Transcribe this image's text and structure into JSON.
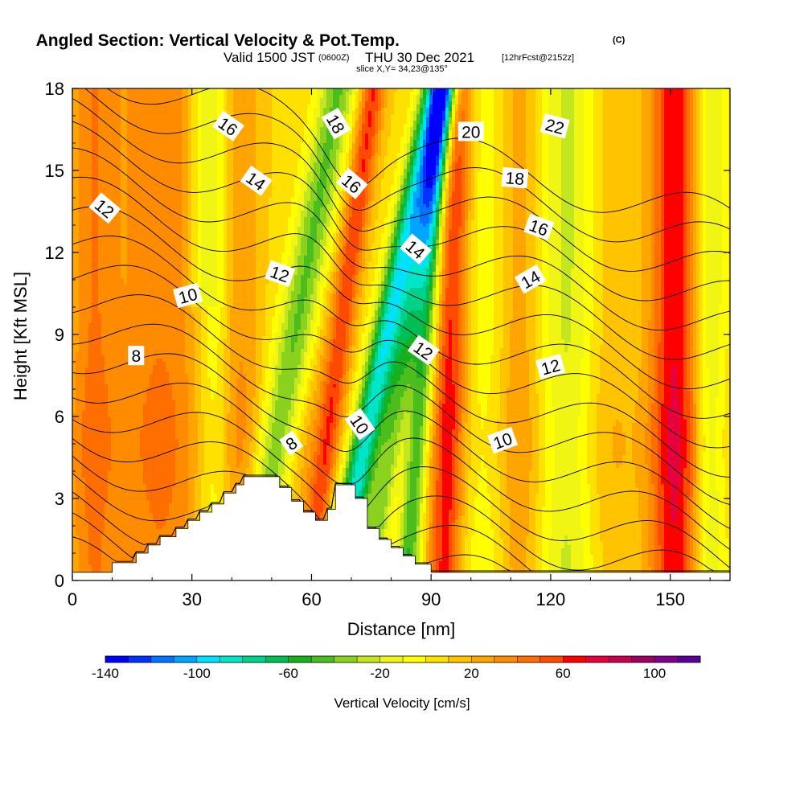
{
  "titles": {
    "main": "Angled Section: Vertical Velocity & Pot.Temp.",
    "main_suffix": "(C)",
    "valid_a": "Valid 1500 JST",
    "valid_b": "(0600Z)",
    "valid_c": "THU 30 Dec 2021",
    "valid_d": "[12hrFcst@2152z]",
    "slice": "slice X,Y= 34,23@135°"
  },
  "colors": {
    "background": "#ffffff",
    "terrain": "#ffffff",
    "contour": "#000000",
    "colorbar": [
      "#0000ff",
      "#0033ff",
      "#0073ff",
      "#00a5ff",
      "#00e0ff",
      "#00e5c8",
      "#00d28c",
      "#00be55",
      "#16b21e",
      "#4bbe1e",
      "#8ad21e",
      "#c3e61e",
      "#f0f514",
      "#ffff00",
      "#ffe100",
      "#ffc300",
      "#ffa500",
      "#ff8c00",
      "#ff6e00",
      "#ff4b00",
      "#ff0000",
      "#e6003c",
      "#c80050",
      "#a00064",
      "#80008c",
      "#5a0096"
    ]
  },
  "chart_data": {
    "type": "heatmap",
    "title": "Angled Section: Vertical Velocity & Pot.Temp.",
    "xlabel": "Distance [nm]",
    "ylabel": "Height [Kft MSL]",
    "xlim": [
      0,
      165
    ],
    "ylim": [
      0,
      18
    ],
    "xticks": [
      0,
      30,
      60,
      90,
      120,
      150
    ],
    "yticks": [
      0,
      3,
      6,
      9,
      12,
      15,
      18
    ],
    "colorbar": {
      "title": "Vertical Velocity [cm/s]",
      "min": -140,
      "max": 120,
      "step": 10,
      "ticks": [
        -140,
        -100,
        -60,
        -20,
        20,
        60,
        100
      ]
    },
    "vertical_velocity_features": [
      {
        "x": 5,
        "w": 6,
        "val": 28
      },
      {
        "x": 22,
        "w": 12,
        "val": 30
      },
      {
        "x": 36,
        "w": 4,
        "val": -20
      },
      {
        "x": 33,
        "w": 4,
        "val": -25,
        "top": 18,
        "bottom": 10
      },
      {
        "x": 42,
        "w": 5,
        "val": 20
      },
      {
        "x": 50,
        "w": 5,
        "val": -50,
        "tilt": 1.2
      },
      {
        "x": 58,
        "w": 4,
        "val": 10,
        "tilt": 1.2
      },
      {
        "x": 63,
        "w": 3,
        "val": 45,
        "tilt": 0.9
      },
      {
        "x": 72,
        "w": 4,
        "val": -100,
        "tilt": 1.4
      },
      {
        "x": 79,
        "w": 3,
        "val": -45,
        "tilt": 1.1
      },
      {
        "x": 86,
        "w": 3,
        "val": -60,
        "tilt": 0.5
      },
      {
        "x": 94,
        "w": 4,
        "val": 55,
        "tilt": 0.2
      },
      {
        "x": 103,
        "w": 6,
        "val": -15
      },
      {
        "x": 112,
        "w": 5,
        "val": 18
      },
      {
        "x": 124,
        "w": 7,
        "val": -30
      },
      {
        "x": 135,
        "w": 6,
        "val": 8
      },
      {
        "x": 151,
        "w": 6,
        "val": 60
      },
      {
        "x": 160,
        "w": 4,
        "val": -30
      }
    ],
    "pot_temp_contours": {
      "levels": [
        4,
        5,
        6,
        7,
        8,
        9,
        10,
        11,
        12,
        13,
        14,
        15,
        16,
        17,
        18,
        19,
        20,
        21,
        22,
        23
      ],
      "labels": [
        {
          "text": "12",
          "x": 8,
          "y": 13.6,
          "rot": 40
        },
        {
          "text": "16",
          "x": 39,
          "y": 16.6,
          "rot": 35
        },
        {
          "text": "14",
          "x": 46,
          "y": 14.6,
          "rot": 35
        },
        {
          "text": "12",
          "x": 52,
          "y": 11.2,
          "rot": 20
        },
        {
          "text": "10",
          "x": 29,
          "y": 10.4,
          "rot": -15
        },
        {
          "text": "8",
          "x": 16,
          "y": 8.2,
          "rot": 0
        },
        {
          "text": "8",
          "x": 55,
          "y": 5.0,
          "rot": -35
        },
        {
          "text": "18",
          "x": 66,
          "y": 16.7,
          "rot": 60
        },
        {
          "text": "16",
          "x": 70,
          "y": 14.5,
          "rot": 40
        },
        {
          "text": "10",
          "x": 72,
          "y": 5.7,
          "rot": 55
        },
        {
          "text": "14",
          "x": 86,
          "y": 12.1,
          "rot": 40
        },
        {
          "text": "12",
          "x": 88,
          "y": 8.4,
          "rot": 35
        },
        {
          "text": "20",
          "x": 100,
          "y": 16.4,
          "rot": 0
        },
        {
          "text": "22",
          "x": 121,
          "y": 16.6,
          "rot": 15
        },
        {
          "text": "18",
          "x": 111,
          "y": 14.7,
          "rot": 5
        },
        {
          "text": "16",
          "x": 117,
          "y": 12.9,
          "rot": 20
        },
        {
          "text": "14",
          "x": 115,
          "y": 11.0,
          "rot": -30
        },
        {
          "text": "12",
          "x": 120,
          "y": 7.8,
          "rot": -15
        },
        {
          "text": "10",
          "x": 108,
          "y": 5.1,
          "rot": -20
        }
      ]
    },
    "terrain_profile": [
      [
        0,
        0.3
      ],
      [
        10,
        0.3
      ],
      [
        10,
        0.65
      ],
      [
        16,
        0.65
      ],
      [
        16,
        1.0
      ],
      [
        19,
        1.0
      ],
      [
        19,
        1.3
      ],
      [
        22,
        1.3
      ],
      [
        22,
        1.6
      ],
      [
        26,
        1.6
      ],
      [
        26,
        1.9
      ],
      [
        29,
        1.9
      ],
      [
        29,
        2.2
      ],
      [
        32,
        2.2
      ],
      [
        32,
        2.5
      ],
      [
        35,
        2.5
      ],
      [
        35,
        2.8
      ],
      [
        38,
        2.8
      ],
      [
        38,
        3.2
      ],
      [
        41,
        3.2
      ],
      [
        41,
        3.5
      ],
      [
        43,
        3.5
      ],
      [
        43,
        3.8
      ],
      [
        52,
        3.8
      ],
      [
        52,
        3.4
      ],
      [
        55,
        3.4
      ],
      [
        55,
        2.9
      ],
      [
        58,
        2.9
      ],
      [
        58,
        2.5
      ],
      [
        61,
        2.5
      ],
      [
        61,
        2.2
      ],
      [
        64,
        2.2
      ],
      [
        64,
        2.6
      ],
      [
        66,
        2.6
      ],
      [
        66,
        3.5
      ],
      [
        71,
        3.5
      ],
      [
        71,
        3.0
      ],
      [
        74,
        3.0
      ],
      [
        74,
        1.9
      ],
      [
        77,
        1.9
      ],
      [
        77,
        1.5
      ],
      [
        80,
        1.5
      ],
      [
        80,
        1.2
      ],
      [
        83,
        1.2
      ],
      [
        83,
        0.9
      ],
      [
        86,
        0.9
      ],
      [
        86,
        0.6
      ],
      [
        90,
        0.6
      ],
      [
        90,
        0.3
      ],
      [
        165,
        0.3
      ]
    ]
  }
}
